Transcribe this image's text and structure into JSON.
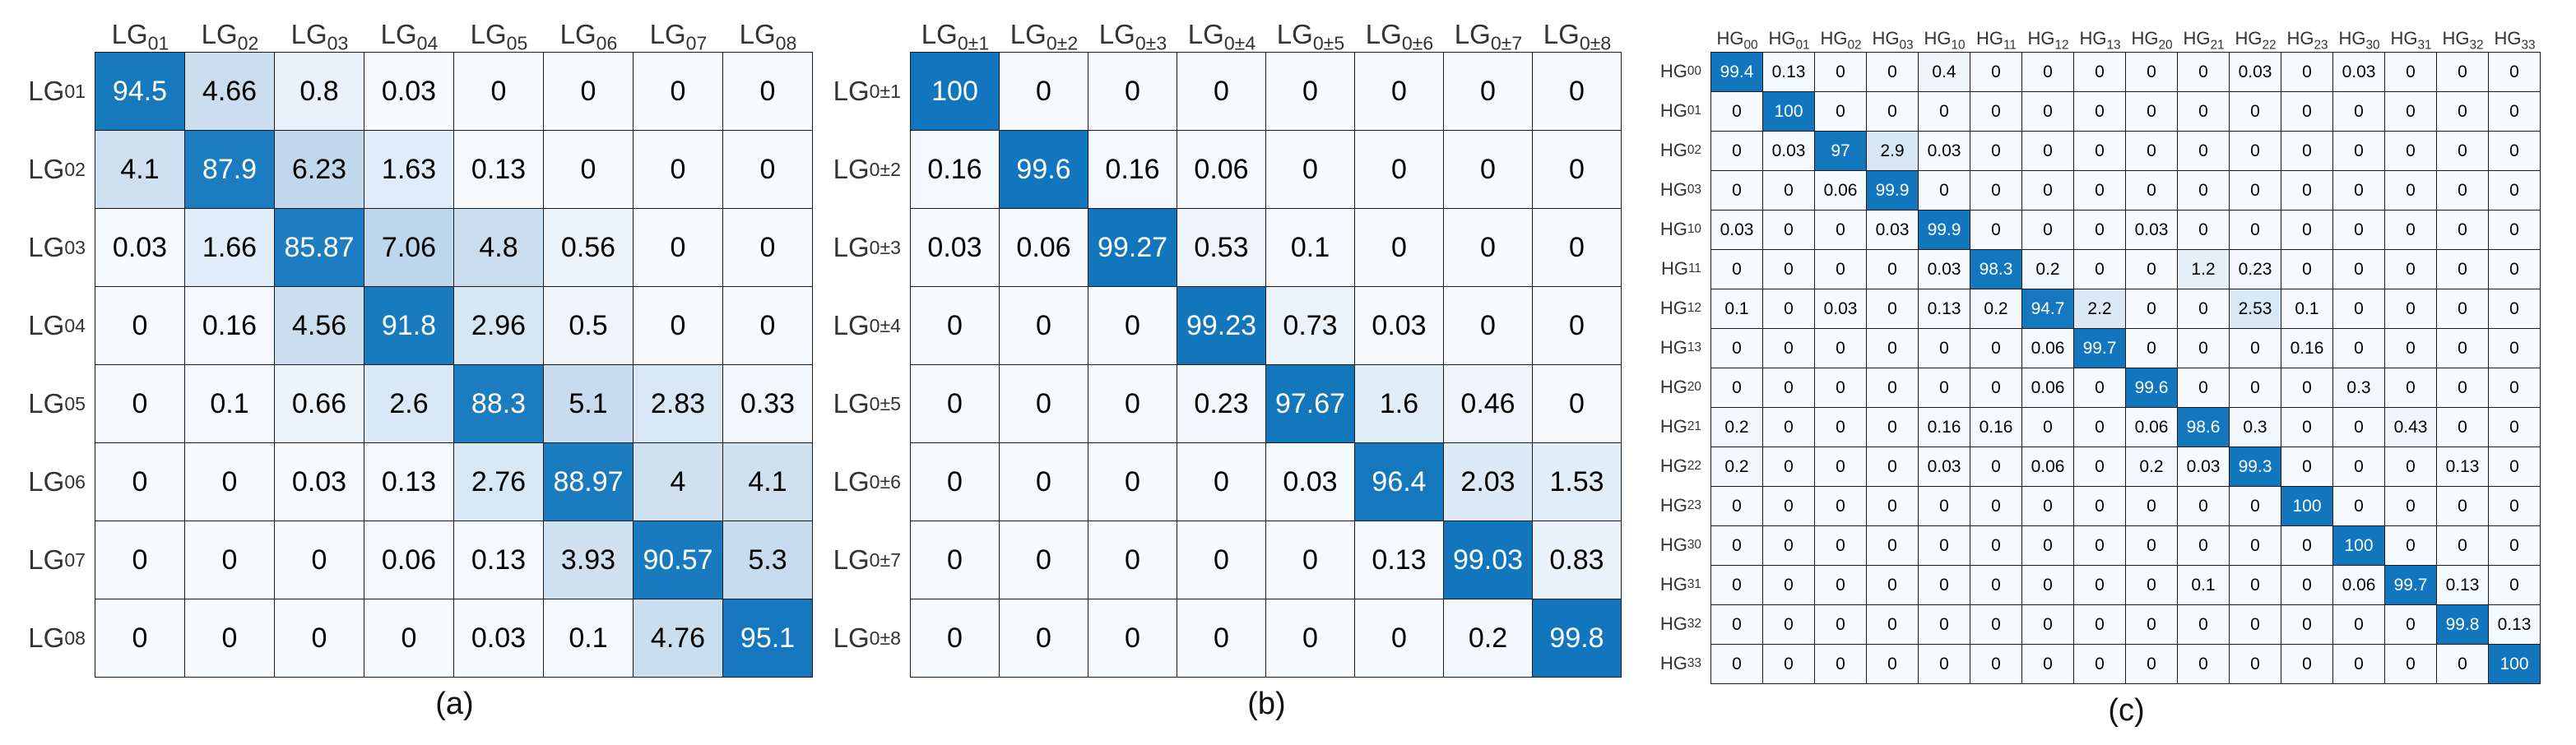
{
  "colors": {
    "heat_max_blue": "#1176bd",
    "heat_zero_bg": "#f7fbff",
    "grid_line": "#1a1a1a",
    "value_text": "#000000",
    "diagonal_value_text": "#ffffff",
    "axis_label_text": "#333333"
  },
  "chart_data": [
    {
      "type": "heatmap",
      "caption": "(a)",
      "label_base": "LG",
      "label_subs": [
        "01",
        "02",
        "03",
        "04",
        "05",
        "06",
        "07",
        "08"
      ],
      "value_range": [
        0,
        100
      ],
      "legend_position": "none",
      "matrix": [
        [
          "94.5",
          "4.66",
          "0.8",
          "0.03",
          "0",
          "0",
          "0",
          "0"
        ],
        [
          "4.1",
          "87.9",
          "6.23",
          "1.63",
          "0.13",
          "0",
          "0",
          "0"
        ],
        [
          "0.03",
          "1.66",
          "85.87",
          "7.06",
          "4.8",
          "0.56",
          "0",
          "0"
        ],
        [
          "0",
          "0.16",
          "4.56",
          "91.8",
          "2.96",
          "0.5",
          "0",
          "0"
        ],
        [
          "0",
          "0.1",
          "0.66",
          "2.6",
          "88.3",
          "5.1",
          "2.83",
          "0.33"
        ],
        [
          "0",
          "0",
          "0.03",
          "0.13",
          "2.76",
          "88.97",
          "4",
          "4.1"
        ],
        [
          "0",
          "0",
          "0",
          "0.06",
          "0.13",
          "3.93",
          "90.57",
          "5.3"
        ],
        [
          "0",
          "0",
          "0",
          "0",
          "0.03",
          "0.1",
          "4.76",
          "95.1"
        ]
      ]
    },
    {
      "type": "heatmap",
      "caption": "(b)",
      "label_base": "LG",
      "label_subs": [
        "0±1",
        "0±2",
        "0±3",
        "0±4",
        "0±5",
        "0±6",
        "0±7",
        "0±8"
      ],
      "value_range": [
        0,
        100
      ],
      "legend_position": "none",
      "matrix": [
        [
          "100",
          "0",
          "0",
          "0",
          "0",
          "0",
          "0",
          "0"
        ],
        [
          "0.16",
          "99.6",
          "0.16",
          "0.06",
          "0",
          "0",
          "0",
          "0"
        ],
        [
          "0.03",
          "0.06",
          "99.27",
          "0.53",
          "0.1",
          "0",
          "0",
          "0"
        ],
        [
          "0",
          "0",
          "0",
          "99.23",
          "0.73",
          "0.03",
          "0",
          "0"
        ],
        [
          "0",
          "0",
          "0",
          "0.23",
          "97.67",
          "1.6",
          "0.46",
          "0"
        ],
        [
          "0",
          "0",
          "0",
          "0",
          "0.03",
          "96.4",
          "2.03",
          "1.53"
        ],
        [
          "0",
          "0",
          "0",
          "0",
          "0",
          "0.13",
          "99.03",
          "0.83"
        ],
        [
          "0",
          "0",
          "0",
          "0",
          "0",
          "0",
          "0.2",
          "99.8"
        ]
      ]
    },
    {
      "type": "heatmap",
      "caption": "(c)",
      "label_base": "HG",
      "label_subs": [
        "00",
        "01",
        "02",
        "03",
        "10",
        "11",
        "12",
        "13",
        "20",
        "21",
        "22",
        "23",
        "30",
        "31",
        "32",
        "33"
      ],
      "value_range": [
        0,
        100
      ],
      "legend_position": "none",
      "matrix": [
        [
          "99.4",
          "0.13",
          "0",
          "0",
          "0.4",
          "0",
          "0",
          "0",
          "0",
          "0",
          "0.03",
          "0",
          "0.03",
          "0",
          "0",
          "0"
        ],
        [
          "0",
          "100",
          "0",
          "0",
          "0",
          "0",
          "0",
          "0",
          "0",
          "0",
          "0",
          "0",
          "0",
          "0",
          "0",
          "0"
        ],
        [
          "0",
          "0.03",
          "97",
          "2.9",
          "0.03",
          "0",
          "0",
          "0",
          "0",
          "0",
          "0",
          "0",
          "0",
          "0",
          "0",
          "0"
        ],
        [
          "0",
          "0",
          "0.06",
          "99.9",
          "0",
          "0",
          "0",
          "0",
          "0",
          "0",
          "0",
          "0",
          "0",
          "0",
          "0",
          "0"
        ],
        [
          "0.03",
          "0",
          "0",
          "0.03",
          "99.9",
          "0",
          "0",
          "0",
          "0.03",
          "0",
          "0",
          "0",
          "0",
          "0",
          "0",
          "0"
        ],
        [
          "0",
          "0",
          "0",
          "0",
          "0.03",
          "98.3",
          "0.2",
          "0",
          "0",
          "1.2",
          "0.23",
          "0",
          "0",
          "0",
          "0",
          "0"
        ],
        [
          "0.1",
          "0",
          "0.03",
          "0",
          "0.13",
          "0.2",
          "94.7",
          "2.2",
          "0",
          "0",
          "2.53",
          "0.1",
          "0",
          "0",
          "0",
          "0"
        ],
        [
          "0",
          "0",
          "0",
          "0",
          "0",
          "0",
          "0.06",
          "99.7",
          "0",
          "0",
          "0",
          "0.16",
          "0",
          "0",
          "0",
          "0"
        ],
        [
          "0",
          "0",
          "0",
          "0",
          "0",
          "0",
          "0.06",
          "0",
          "99.6",
          "0",
          "0",
          "0",
          "0.3",
          "0",
          "0",
          "0"
        ],
        [
          "0.2",
          "0",
          "0",
          "0",
          "0.16",
          "0.16",
          "0",
          "0",
          "0.06",
          "98.6",
          "0.3",
          "0",
          "0",
          "0.43",
          "0",
          "0"
        ],
        [
          "0.2",
          "0",
          "0",
          "0",
          "0.03",
          "0",
          "0.06",
          "0",
          "0.2",
          "0.03",
          "99.3",
          "0",
          "0",
          "0",
          "0.13",
          "0"
        ],
        [
          "0",
          "0",
          "0",
          "0",
          "0",
          "0",
          "0",
          "0",
          "0",
          "0",
          "0",
          "100",
          "0",
          "0",
          "0",
          "0"
        ],
        [
          "0",
          "0",
          "0",
          "0",
          "0",
          "0",
          "0",
          "0",
          "0",
          "0",
          "0",
          "0",
          "100",
          "0",
          "0",
          "0"
        ],
        [
          "0",
          "0",
          "0",
          "0",
          "0",
          "0",
          "0",
          "0",
          "0",
          "0.1",
          "0",
          "0",
          "0.06",
          "99.7",
          "0.13",
          "0"
        ],
        [
          "0",
          "0",
          "0",
          "0",
          "0",
          "0",
          "0",
          "0",
          "0",
          "0",
          "0",
          "0",
          "0",
          "0",
          "99.8",
          "0.13"
        ],
        [
          "0",
          "0",
          "0",
          "0",
          "0",
          "0",
          "0",
          "0",
          "0",
          "0",
          "0",
          "0",
          "0",
          "0",
          "0",
          "100"
        ]
      ]
    }
  ]
}
